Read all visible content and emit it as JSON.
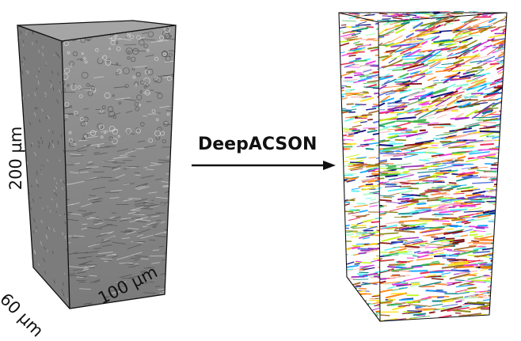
{
  "labels": {
    "height": "200 µm",
    "depth": "60 µm",
    "width": "100 µm",
    "method": "DeepACSON"
  },
  "panels": {
    "left": "grayscale electron microscopy volume",
    "right": "colour-coded axon segmentation volume"
  },
  "colors": {
    "em_base": "#8c8c8c",
    "em_dark": "#4a4a4a",
    "em_light": "#d8d8d8",
    "edge": "#111111",
    "arrow": "#111111",
    "segments": [
      "#e6194b",
      "#3cb44b",
      "#ffe119",
      "#4363d8",
      "#f58231",
      "#911eb4",
      "#46f0f0",
      "#f032e6",
      "#bcf60c",
      "#fabebe",
      "#008080",
      "#9a6324",
      "#800000",
      "#aaffc3",
      "#808000",
      "#000075",
      "#ff7f00",
      "#00a0ff"
    ]
  }
}
